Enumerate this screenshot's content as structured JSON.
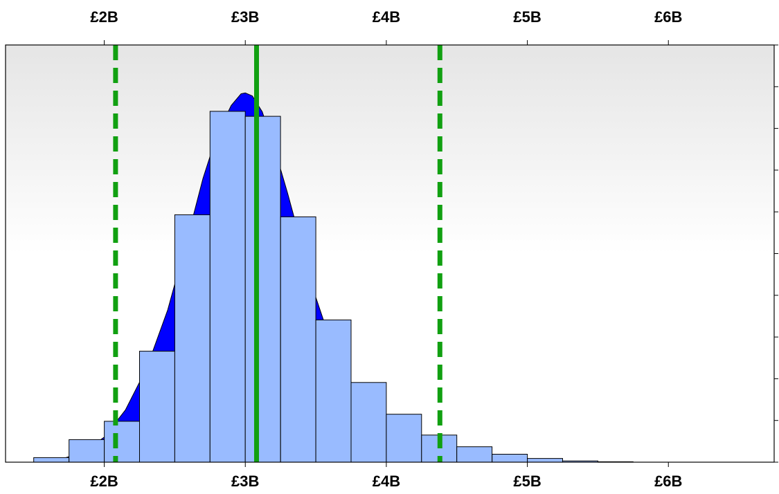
{
  "chart_data": {
    "type": "bar",
    "title": "",
    "xlabel": "",
    "ylabel": "",
    "xlim": [
      1.3,
      6.75
    ],
    "ylim": [
      0,
      100
    ],
    "x_ticks": [
      2,
      3,
      4,
      5,
      6
    ],
    "x_tick_labels": [
      "£2B",
      "£3B",
      "£4B",
      "£5B",
      "£6B"
    ],
    "histogram": {
      "bin_width": 0.25,
      "bin_starts": [
        1.5,
        1.75,
        2.0,
        2.25,
        2.5,
        2.75,
        3.0,
        3.25,
        3.5,
        3.75,
        4.0,
        4.25,
        4.5,
        4.75,
        5.0,
        5.25,
        5.5
      ],
      "values": [
        1.1,
        5.4,
        9.8,
        26.6,
        59.3,
        84.1,
        82.9,
        58.8,
        34.1,
        19.1,
        11.5,
        6.5,
        3.7,
        1.9,
        0.9,
        0.3,
        0.1
      ],
      "fill_color": "#99bbff",
      "edge_color": "#000000"
    },
    "density": {
      "x": [
        1.55,
        1.7,
        1.85,
        2.0,
        2.15,
        2.3,
        2.45,
        2.6,
        2.7,
        2.8,
        2.9,
        2.97,
        3.0,
        3.05,
        3.12,
        3.2,
        3.3,
        3.4,
        3.5,
        3.6,
        3.7,
        3.8,
        3.9,
        4.0,
        4.1,
        4.2,
        4.35,
        4.5,
        4.7,
        4.9,
        5.1,
        5.3,
        5.6
      ],
      "y": [
        0.2,
        0.8,
        2.4,
        6.0,
        12.5,
        22.5,
        36.5,
        55.0,
        68.0,
        78.5,
        85.5,
        88.3,
        88.5,
        87.8,
        84.0,
        76.0,
        64.5,
        52.0,
        39.5,
        29.5,
        21.5,
        15.5,
        11.0,
        8.0,
        5.8,
        4.0,
        2.5,
        1.3,
        0.7,
        0.3,
        0.15,
        0.05,
        0.0
      ],
      "fill_color": "#0000ff"
    },
    "reference_lines": [
      {
        "x": 2.08,
        "style": "dashed",
        "color": "#11a011"
      },
      {
        "x": 3.08,
        "style": "solid",
        "color": "#11a011"
      },
      {
        "x": 4.38,
        "style": "dashed",
        "color": "#11a011"
      }
    ],
    "right_axis_ticks": 10,
    "background_gradient": [
      "#e5e5e5",
      "#ffffff"
    ]
  }
}
